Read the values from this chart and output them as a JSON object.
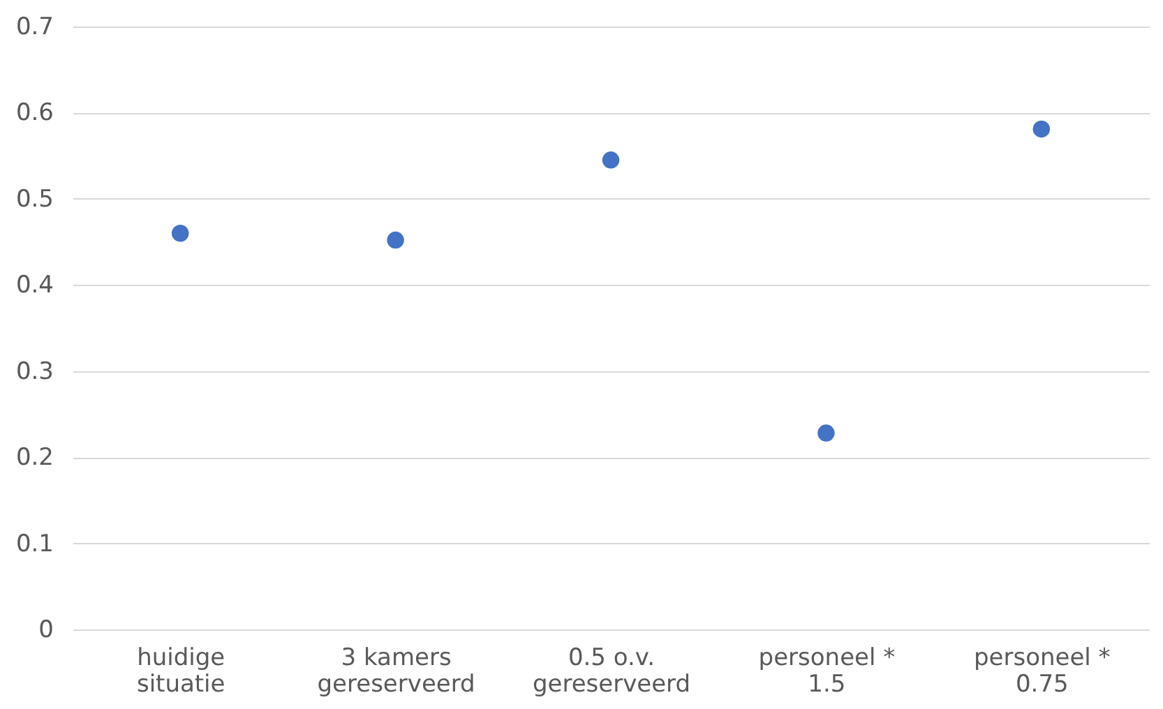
{
  "chart_data": {
    "type": "scatter",
    "categories": [
      "huidige\nsituatie",
      "3 kamers\ngereserveerd",
      "0.5 o.v.\ngereserveerd",
      "personeel *\n1.5",
      "personeel *\n0.75"
    ],
    "series": [
      {
        "color": "#4472c4",
        "values": [
          0.46,
          0.452,
          0.545,
          0.228,
          0.581
        ]
      }
    ],
    "ylim": [
      0,
      0.7
    ],
    "yticks": [
      {
        "value": 0,
        "label": "0"
      },
      0.1,
      0.2,
      0.3,
      0.4,
      0.5,
      0.6,
      0.7
    ],
    "grid": "y",
    "marker": "circle",
    "legend": false
  }
}
